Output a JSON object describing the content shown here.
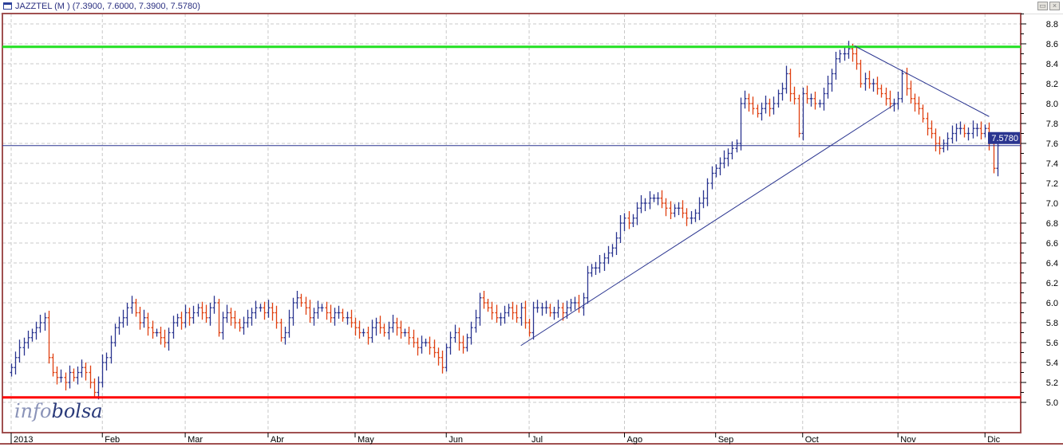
{
  "window": {
    "title": "JAZZTEL (M ) (7.3900, 7.6000, 7.3900, 7.5780)",
    "restore_label": "▭",
    "close_label": "×"
  },
  "logo": {
    "text_light": "info",
    "text_dark": "bolsa"
  },
  "colors": {
    "up": "#2a3590",
    "down": "#e04010",
    "support": "#ff0000",
    "resistance": "#22e022",
    "trend": "#2a3590",
    "frame": "#a05050"
  },
  "chart_data": {
    "type": "ohlc",
    "title": "JAZZTEL (M )",
    "last_ohlc": {
      "open": 7.39,
      "high": 7.6,
      "low": 7.39,
      "close": 7.578
    },
    "current_price_label": "7.5780",
    "ylim": [
      4.85,
      8.9
    ],
    "yticks": [
      5.0,
      5.2,
      5.4,
      5.6,
      5.8,
      6.0,
      6.2,
      6.4,
      6.6,
      6.8,
      7.0,
      7.2,
      7.4,
      7.6,
      7.8,
      8.0,
      8.2,
      8.4,
      8.6,
      8.8
    ],
    "ytick_labels": [
      "5.0",
      "5.2",
      "5.4",
      "5.6",
      "5.8",
      "6.0",
      "6.2",
      "6.4",
      "6.6",
      "6.8",
      "7.0",
      "7.2",
      "7.4",
      "7.6",
      "7.8",
      "8.0",
      "8.2",
      "8.4",
      "8.6",
      "8.8"
    ],
    "months": [
      {
        "label": "2013",
        "index": 0
      },
      {
        "label": "Feb",
        "index": 22
      },
      {
        "label": "Mar",
        "index": 42
      },
      {
        "label": "Abr",
        "index": 62
      },
      {
        "label": "May",
        "index": 83
      },
      {
        "label": "Jun",
        "index": 105
      },
      {
        "label": "Jul",
        "index": 125
      },
      {
        "label": "Ago",
        "index": 148
      },
      {
        "label": "Sep",
        "index": 170
      },
      {
        "label": "Oct",
        "index": 191
      },
      {
        "label": "Nov",
        "index": 214
      },
      {
        "label": "Dic",
        "index": 235
      }
    ],
    "closes": [
      5.35,
      5.45,
      5.55,
      5.6,
      5.65,
      5.7,
      5.75,
      5.8,
      5.85,
      5.45,
      5.3,
      5.25,
      5.25,
      5.2,
      5.3,
      5.25,
      5.3,
      5.35,
      5.3,
      5.2,
      5.1,
      5.2,
      5.4,
      5.45,
      5.6,
      5.75,
      5.8,
      5.85,
      5.95,
      6.0,
      5.9,
      5.8,
      5.85,
      5.75,
      5.7,
      5.7,
      5.65,
      5.6,
      5.7,
      5.8,
      5.85,
      5.8,
      5.9,
      5.85,
      5.9,
      5.95,
      5.9,
      5.85,
      5.95,
      6.0,
      5.7,
      5.85,
      5.9,
      5.85,
      5.8,
      5.75,
      5.8,
      5.85,
      5.9,
      5.95,
      5.95,
      5.9,
      5.95,
      5.9,
      5.8,
      5.65,
      5.7,
      5.85,
      6.0,
      6.05,
      6.0,
      5.95,
      5.85,
      5.9,
      5.95,
      5.95,
      5.9,
      5.85,
      5.9,
      5.9,
      5.85,
      5.85,
      5.8,
      5.75,
      5.7,
      5.7,
      5.65,
      5.75,
      5.8,
      5.75,
      5.7,
      5.75,
      5.8,
      5.75,
      5.7,
      5.7,
      5.65,
      5.6,
      5.55,
      5.6,
      5.6,
      5.55,
      5.5,
      5.45,
      5.35,
      5.55,
      5.65,
      5.7,
      5.6,
      5.55,
      5.65,
      5.75,
      5.85,
      6.05,
      6.0,
      5.95,
      5.9,
      5.85,
      5.85,
      5.9,
      5.95,
      5.9,
      5.85,
      5.95,
      5.8,
      5.7,
      5.95,
      5.95,
      5.95,
      5.95,
      5.9,
      5.9,
      5.95,
      5.9,
      5.95,
      6.0,
      6.0,
      5.95,
      6.05,
      6.3,
      6.35,
      6.35,
      6.4,
      6.45,
      6.5,
      6.55,
      6.65,
      6.8,
      6.85,
      6.8,
      6.85,
      6.95,
      7.0,
      7.0,
      7.05,
      7.05,
      7.05,
      7.0,
      6.95,
      6.9,
      6.95,
      6.95,
      6.9,
      6.85,
      6.85,
      6.9,
      7.0,
      7.05,
      7.2,
      7.3,
      7.35,
      7.4,
      7.45,
      7.5,
      7.55,
      7.6,
      8.0,
      8.05,
      8.0,
      7.95,
      7.9,
      7.95,
      8.0,
      7.95,
      8.0,
      8.1,
      8.15,
      8.3,
      8.1,
      8.05,
      7.7,
      8.1,
      8.05,
      8.05,
      8.0,
      8.0,
      8.1,
      8.2,
      8.3,
      8.45,
      8.5,
      8.5,
      8.55,
      8.5,
      8.4,
      8.2,
      8.25,
      8.2,
      8.2,
      8.15,
      8.1,
      8.05,
      8.0,
      8.0,
      8.05,
      8.3,
      8.15,
      8.05,
      8.0,
      7.95,
      7.85,
      7.75,
      7.7,
      7.6,
      7.55,
      7.6,
      7.65,
      7.7,
      7.75,
      7.75,
      7.7,
      7.7,
      7.75,
      7.75,
      7.7,
      7.75,
      7.6,
      7.35,
      7.578
    ],
    "horizontal_lines": [
      {
        "name": "resistance",
        "value": 8.57
      },
      {
        "name": "support",
        "value": 5.05
      },
      {
        "name": "last-price",
        "value": 7.578
      }
    ],
    "trendlines": [
      {
        "name": "uptrend",
        "from": {
          "index": 123,
          "value": 5.57
        },
        "to": {
          "index": 213.5,
          "value": 8.0
        }
      },
      {
        "name": "downtrend",
        "from": {
          "index": 203.5,
          "value": 8.58
        },
        "to": {
          "index": 236,
          "value": 7.87
        }
      }
    ]
  }
}
